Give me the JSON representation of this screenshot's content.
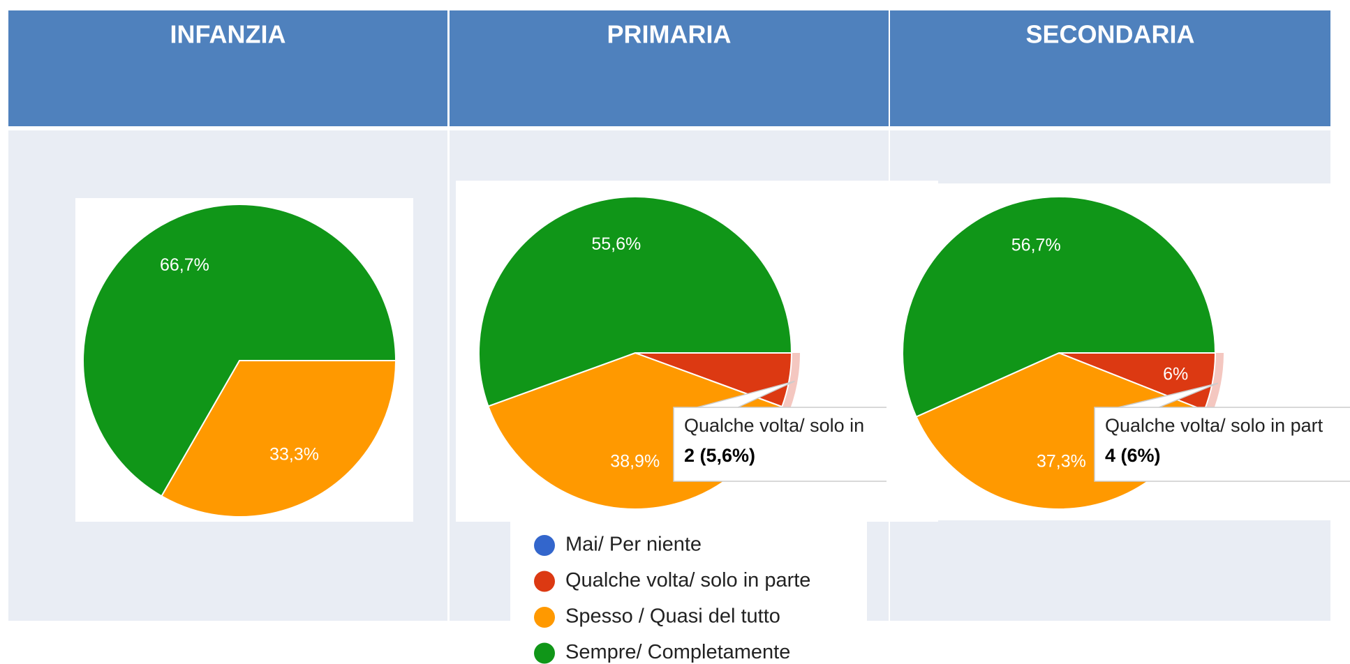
{
  "chart_data": [
    {
      "type": "pie",
      "title": "INFANZIA",
      "categories": [
        "Mai/ Per niente",
        "Qualche volta/ solo in parte",
        "Spesso / Quasi del tutto",
        "Sempre/ Completamente"
      ],
      "values": [
        0,
        0,
        33.3,
        66.7
      ],
      "value_labels": [
        null,
        null,
        "33,3%",
        "66,7%"
      ],
      "colors": [
        "#3366cc",
        "#dc3912",
        "#ff9900",
        "#109618"
      ]
    },
    {
      "type": "pie",
      "title": "PRIMARIA",
      "categories": [
        "Mai/ Per niente",
        "Qualche volta/ solo in parte",
        "Spesso / Quasi del tutto",
        "Sempre/ Completamente"
      ],
      "values": [
        0,
        5.6,
        38.9,
        55.6
      ],
      "value_labels": [
        null,
        null,
        "38,9%",
        "55,6%"
      ],
      "colors": [
        "#3366cc",
        "#dc3912",
        "#ff9900",
        "#109618"
      ],
      "tooltip": [
        "Qualche volta/ solo in",
        "2 (5,6%)"
      ],
      "legend": "bottom"
    },
    {
      "type": "pie",
      "title": "SECONDARIA",
      "categories": [
        "Mai/ Per niente",
        "Qualche volta/ solo in parte",
        "Spesso / Quasi del tutto",
        "Sempre/ Completamente"
      ],
      "values": [
        0,
        6,
        37.3,
        56.7
      ],
      "value_labels": [
        null,
        "6%",
        "37,3%",
        "56,7%"
      ],
      "colors": [
        "#3366cc",
        "#dc3912",
        "#ff9900",
        "#109618"
      ],
      "tooltip": [
        "Qualche volta/ solo in part",
        "4 (6%)"
      ]
    }
  ]
}
